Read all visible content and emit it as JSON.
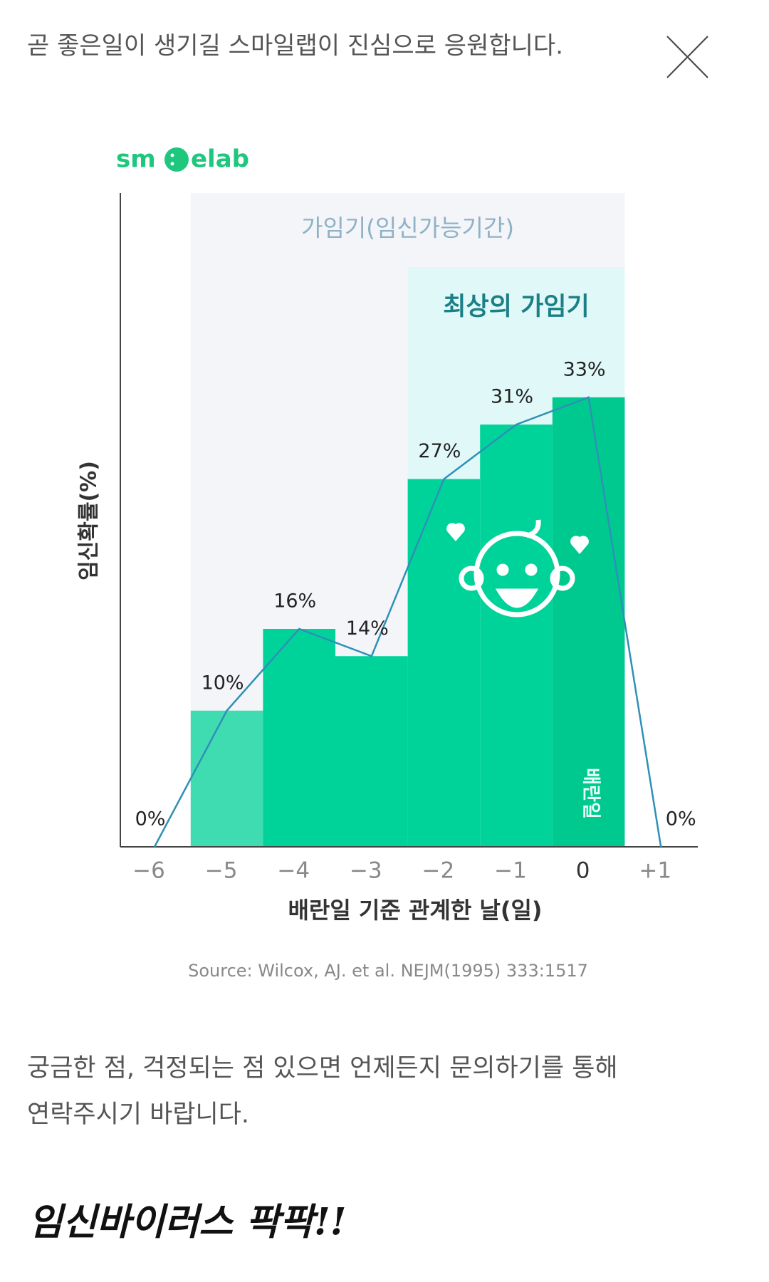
{
  "header": {
    "text": "곧 좋은일이 생기길 스마일랩이 진심으로 응원합니다."
  },
  "logo": {
    "left": "sm",
    "right": "elab"
  },
  "chart_data": {
    "type": "bar",
    "categories": [
      "−6",
      "−5",
      "−4",
      "−3",
      "−2",
      "−1",
      "0",
      "+1"
    ],
    "values": [
      0,
      10,
      16,
      14,
      27,
      31,
      33,
      0
    ],
    "value_labels": [
      "0%",
      "10%",
      "16%",
      "14%",
      "27%",
      "31%",
      "33%",
      "0%"
    ],
    "colors": [
      "#00d39a",
      "#3fdcb2",
      "#00d39a",
      "#00d39a",
      "#00d39a",
      "#00d39a",
      "#00c98f",
      "#00d39a"
    ],
    "line_color": "#2f90b6",
    "ylim": [
      0,
      48
    ],
    "ylabel": "임신확률(%)",
    "xlabel": "배란일 기준 관계한 날(일)",
    "annotations": {
      "fertile": "가임기(임신가능기간)",
      "best": "최상의 가임기",
      "ovulation": "배란일"
    },
    "source": "Source: Wilcox, AJ. et al. NEJM(1995) 333:1517"
  },
  "body": {
    "lines": [
      "궁금한 점, 걱정되는 점 있으면 언제든지 문의하기를 통해",
      "연락주시기 바랍니다."
    ],
    "handwriting": "임신바이러스 팍팍!!"
  }
}
